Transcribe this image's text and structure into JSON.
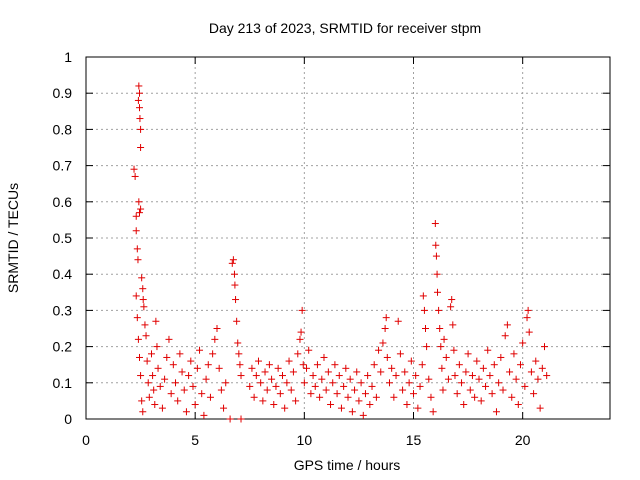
{
  "chart_data": {
    "type": "scatter",
    "title": "Day 213 of 2023, SRMTID for receiver stpm",
    "xlabel": "GPS time / hours",
    "ylabel": "SRMTID / TECUs",
    "xlim": [
      0,
      24
    ],
    "ylim": [
      0,
      1
    ],
    "x_ticks": [
      "0",
      "5",
      "10",
      "15",
      "20"
    ],
    "x_tick_values": [
      0,
      5,
      10,
      15,
      20
    ],
    "y_ticks": [
      "0",
      "0.1",
      "0.2",
      "0.3",
      "0.4",
      "0.5",
      "0.6",
      "0.7",
      "0.8",
      "0.9",
      "1"
    ],
    "y_tick_values": [
      0,
      0.1,
      0.2,
      0.3,
      0.4,
      0.5,
      0.6,
      0.7,
      0.8,
      0.9,
      1.0
    ],
    "grid": true,
    "marker": "+",
    "marker_color": "#e00000",
    "series": [
      {
        "name": "SRMTID",
        "points": [
          [
            2.2,
            0.69
          ],
          [
            2.25,
            0.67
          ],
          [
            2.3,
            0.56
          ],
          [
            2.3,
            0.52
          ],
          [
            2.35,
            0.47
          ],
          [
            2.4,
            0.88
          ],
          [
            2.42,
            0.92
          ],
          [
            2.45,
            0.9
          ],
          [
            2.45,
            0.86
          ],
          [
            2.47,
            0.83
          ],
          [
            2.5,
            0.8
          ],
          [
            2.5,
            0.75
          ],
          [
            2.42,
            0.6
          ],
          [
            2.45,
            0.57
          ],
          [
            2.5,
            0.58
          ],
          [
            2.38,
            0.44
          ],
          [
            2.55,
            0.39
          ],
          [
            2.6,
            0.36
          ],
          [
            2.62,
            0.33
          ],
          [
            2.65,
            0.31
          ],
          [
            2.3,
            0.34
          ],
          [
            2.35,
            0.28
          ],
          [
            2.4,
            0.22
          ],
          [
            2.45,
            0.17
          ],
          [
            2.5,
            0.12
          ],
          [
            2.55,
            0.05
          ],
          [
            2.6,
            0.02
          ],
          [
            2.7,
            0.26
          ],
          [
            2.75,
            0.23
          ],
          [
            2.8,
            0.16
          ],
          [
            2.85,
            0.1
          ],
          [
            2.9,
            0.06
          ],
          [
            3.0,
            0.18
          ],
          [
            3.05,
            0.12
          ],
          [
            3.1,
            0.08
          ],
          [
            3.15,
            0.04
          ],
          [
            3.2,
            0.27
          ],
          [
            3.25,
            0.2
          ],
          [
            3.3,
            0.14
          ],
          [
            3.4,
            0.09
          ],
          [
            3.5,
            0.03
          ],
          [
            3.6,
            0.11
          ],
          [
            3.7,
            0.17
          ],
          [
            3.8,
            0.22
          ],
          [
            3.9,
            0.07
          ],
          [
            4.0,
            0.15
          ],
          [
            4.1,
            0.1
          ],
          [
            4.2,
            0.05
          ],
          [
            4.3,
            0.18
          ],
          [
            4.4,
            0.13
          ],
          [
            4.5,
            0.08
          ],
          [
            4.6,
            0.02
          ],
          [
            4.7,
            0.12
          ],
          [
            4.8,
            0.16
          ],
          [
            4.9,
            0.09
          ],
          [
            5.0,
            0.04
          ],
          [
            5.1,
            0.14
          ],
          [
            5.2,
            0.19
          ],
          [
            5.3,
            0.07
          ],
          [
            5.4,
            0.01
          ],
          [
            5.5,
            0.11
          ],
          [
            5.6,
            0.15
          ],
          [
            5.7,
            0.06
          ],
          [
            5.8,
            0.18
          ],
          [
            5.9,
            0.22
          ],
          [
            6.0,
            0.25
          ],
          [
            6.1,
            0.14
          ],
          [
            6.2,
            0.08
          ],
          [
            6.3,
            0.03
          ],
          [
            6.4,
            0.1
          ],
          [
            6.7,
            0.43
          ],
          [
            6.75,
            0.44
          ],
          [
            6.8,
            0.4
          ],
          [
            6.82,
            0.37
          ],
          [
            6.85,
            0.33
          ],
          [
            6.9,
            0.27
          ],
          [
            6.95,
            0.21
          ],
          [
            7.0,
            0.18
          ],
          [
            7.05,
            0.15
          ],
          [
            7.1,
            0.12
          ],
          [
            6.6,
            0.0
          ],
          [
            7.1,
            0.0
          ],
          [
            7.5,
            0.09
          ],
          [
            7.6,
            0.14
          ],
          [
            7.7,
            0.06
          ],
          [
            7.8,
            0.12
          ],
          [
            7.9,
            0.16
          ],
          [
            8.0,
            0.1
          ],
          [
            8.1,
            0.05
          ],
          [
            8.2,
            0.13
          ],
          [
            8.3,
            0.08
          ],
          [
            8.4,
            0.15
          ],
          [
            8.5,
            0.11
          ],
          [
            8.6,
            0.04
          ],
          [
            8.7,
            0.09
          ],
          [
            8.8,
            0.14
          ],
          [
            8.9,
            0.07
          ],
          [
            9.0,
            0.12
          ],
          [
            9.1,
            0.03
          ],
          [
            9.2,
            0.1
          ],
          [
            9.3,
            0.16
          ],
          [
            9.4,
            0.08
          ],
          [
            9.5,
            0.13
          ],
          [
            9.6,
            0.05
          ],
          [
            9.7,
            0.18
          ],
          [
            9.8,
            0.22
          ],
          [
            9.85,
            0.24
          ],
          [
            9.9,
            0.3
          ],
          [
            9.95,
            0.15
          ],
          [
            10.0,
            0.1
          ],
          [
            10.1,
            0.14
          ],
          [
            10.2,
            0.19
          ],
          [
            10.3,
            0.07
          ],
          [
            10.4,
            0.12
          ],
          [
            10.5,
            0.09
          ],
          [
            10.6,
            0.15
          ],
          [
            10.7,
            0.06
          ],
          [
            10.8,
            0.11
          ],
          [
            10.9,
            0.17
          ],
          [
            11.0,
            0.08
          ],
          [
            11.1,
            0.13
          ],
          [
            11.2,
            0.04
          ],
          [
            11.3,
            0.1
          ],
          [
            11.4,
            0.15
          ],
          [
            11.5,
            0.07
          ],
          [
            11.6,
            0.12
          ],
          [
            11.7,
            0.03
          ],
          [
            11.8,
            0.09
          ],
          [
            11.9,
            0.14
          ],
          [
            12.0,
            0.06
          ],
          [
            12.1,
            0.11
          ],
          [
            12.2,
            0.02
          ],
          [
            12.3,
            0.08
          ],
          [
            12.4,
            0.13
          ],
          [
            12.5,
            0.05
          ],
          [
            12.6,
            0.1
          ],
          [
            12.7,
            0.01
          ],
          [
            12.8,
            0.07
          ],
          [
            12.9,
            0.12
          ],
          [
            13.0,
            0.04
          ],
          [
            13.1,
            0.09
          ],
          [
            13.2,
            0.15
          ],
          [
            13.3,
            0.06
          ],
          [
            13.4,
            0.19
          ],
          [
            13.5,
            0.13
          ],
          [
            13.6,
            0.21
          ],
          [
            13.7,
            0.25
          ],
          [
            13.75,
            0.28
          ],
          [
            13.8,
            0.17
          ],
          [
            13.9,
            0.1
          ],
          [
            14.0,
            0.14
          ],
          [
            14.1,
            0.06
          ],
          [
            14.2,
            0.12
          ],
          [
            14.3,
            0.27
          ],
          [
            14.4,
            0.18
          ],
          [
            14.5,
            0.08
          ],
          [
            14.6,
            0.13
          ],
          [
            14.7,
            0.04
          ],
          [
            14.8,
            0.1
          ],
          [
            14.9,
            0.16
          ],
          [
            15.0,
            0.07
          ],
          [
            15.1,
            0.12
          ],
          [
            15.2,
            0.03
          ],
          [
            15.3,
            0.09
          ],
          [
            15.4,
            0.15
          ],
          [
            15.45,
            0.34
          ],
          [
            15.5,
            0.3
          ],
          [
            15.55,
            0.25
          ],
          [
            15.6,
            0.2
          ],
          [
            15.7,
            0.11
          ],
          [
            15.8,
            0.06
          ],
          [
            15.9,
            0.02
          ],
          [
            16.0,
            0.54
          ],
          [
            16.02,
            0.48
          ],
          [
            16.05,
            0.45
          ],
          [
            16.08,
            0.4
          ],
          [
            16.1,
            0.35
          ],
          [
            16.15,
            0.3
          ],
          [
            16.2,
            0.25
          ],
          [
            16.25,
            0.2
          ],
          [
            16.3,
            0.14
          ],
          [
            16.35,
            0.08
          ],
          [
            16.4,
            0.22
          ],
          [
            16.5,
            0.17
          ],
          [
            16.6,
            0.11
          ],
          [
            16.7,
            0.31
          ],
          [
            16.75,
            0.33
          ],
          [
            16.8,
            0.26
          ],
          [
            16.85,
            0.19
          ],
          [
            16.9,
            0.12
          ],
          [
            17.0,
            0.07
          ],
          [
            17.1,
            0.15
          ],
          [
            17.2,
            0.1
          ],
          [
            17.3,
            0.04
          ],
          [
            17.4,
            0.13
          ],
          [
            17.5,
            0.18
          ],
          [
            17.6,
            0.08
          ],
          [
            17.7,
            0.12
          ],
          [
            17.8,
            0.06
          ],
          [
            17.9,
            0.16
          ],
          [
            18.0,
            0.11
          ],
          [
            18.1,
            0.05
          ],
          [
            18.2,
            0.14
          ],
          [
            18.3,
            0.09
          ],
          [
            18.4,
            0.19
          ],
          [
            18.5,
            0.12
          ],
          [
            18.6,
            0.07
          ],
          [
            18.7,
            0.15
          ],
          [
            18.8,
            0.02
          ],
          [
            18.9,
            0.1
          ],
          [
            19.0,
            0.17
          ],
          [
            19.1,
            0.08
          ],
          [
            19.2,
            0.23
          ],
          [
            19.3,
            0.26
          ],
          [
            19.4,
            0.13
          ],
          [
            19.5,
            0.06
          ],
          [
            19.6,
            0.18
          ],
          [
            19.7,
            0.11
          ],
          [
            19.8,
            0.04
          ],
          [
            19.9,
            0.15
          ],
          [
            20.0,
            0.21
          ],
          [
            20.1,
            0.09
          ],
          [
            20.2,
            0.28
          ],
          [
            20.25,
            0.3
          ],
          [
            20.3,
            0.24
          ],
          [
            20.4,
            0.13
          ],
          [
            20.5,
            0.07
          ],
          [
            20.6,
            0.16
          ],
          [
            20.7,
            0.11
          ],
          [
            20.8,
            0.03
          ],
          [
            20.9,
            0.14
          ],
          [
            21.0,
            0.2
          ],
          [
            21.1,
            0.12
          ]
        ]
      }
    ]
  }
}
